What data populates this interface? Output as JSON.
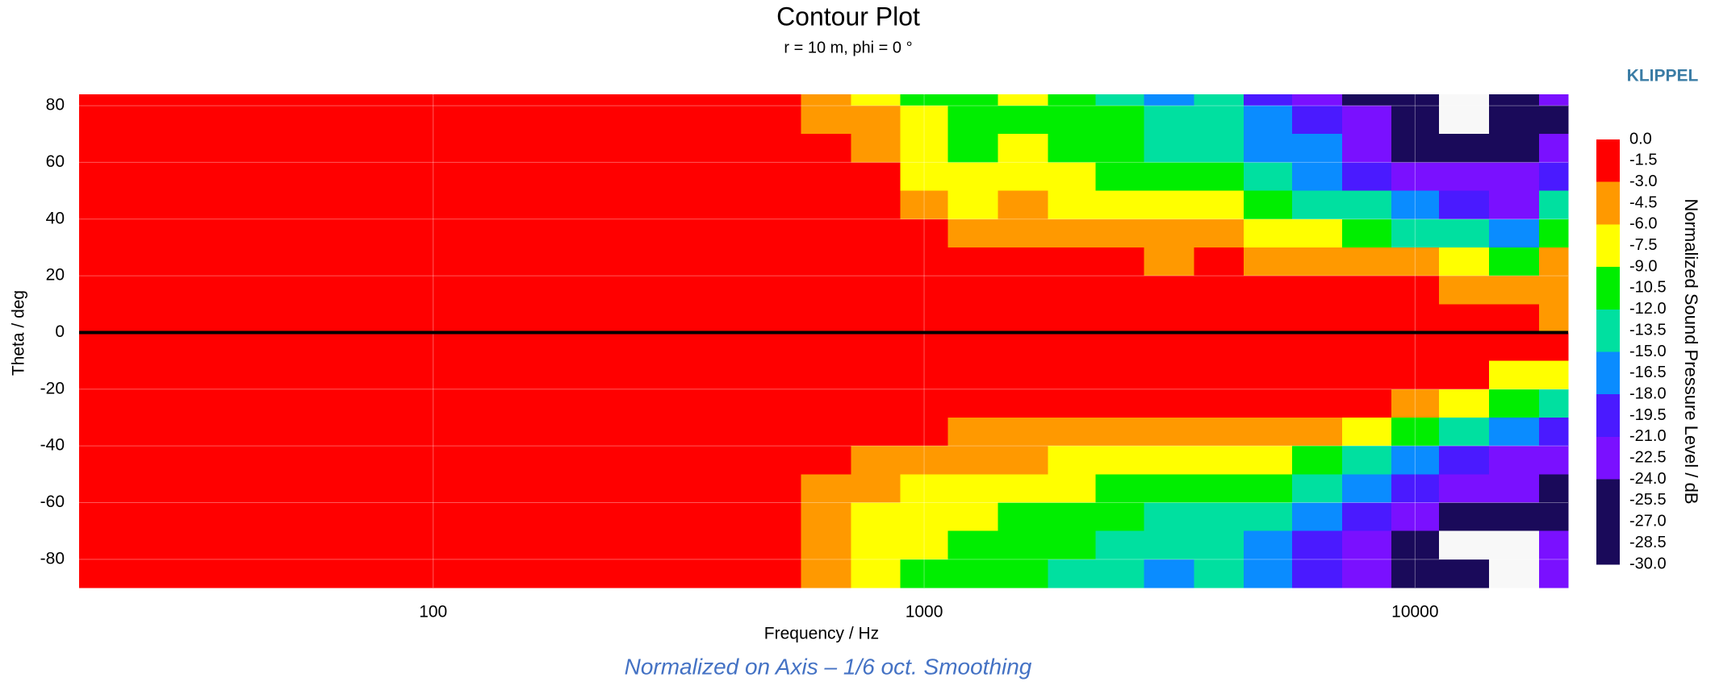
{
  "chart_data": {
    "type": "contour",
    "title": "Contour Plot",
    "subtitle": "r = 10 m, phi = 0 °",
    "brand": "KLIPPEL",
    "xlabel": "Frequency / Hz",
    "ylabel": "Theta / deg",
    "colorbar_label": "Normalized Sound Pressure Level / dB",
    "footnote": "Normalized on Axis – 1/6 oct. Smoothing",
    "xscale": "log",
    "xlim": [
      19,
      20500
    ],
    "ylim": [
      -90,
      84
    ],
    "xticks": [
      100,
      1000,
      10000
    ],
    "yticks": [
      80,
      60,
      40,
      20,
      0,
      -20,
      -40,
      -60,
      -80
    ],
    "grid": true,
    "hline": 0,
    "x": [
      20,
      500,
      630,
      800,
      1000,
      1250,
      1600,
      2000,
      2500,
      3150,
      4000,
      5000,
      6300,
      8000,
      10000,
      12500,
      16000,
      20000
    ],
    "y": [
      85,
      75,
      65,
      55,
      45,
      35,
      25,
      15,
      5,
      -5,
      -15,
      -25,
      -35,
      -45,
      -55,
      -65,
      -75,
      -85
    ],
    "z": [
      [
        0,
        -2,
        -5,
        -8,
        -10,
        -11,
        -9,
        -12,
        -14,
        -17,
        -15,
        -20,
        -22,
        -26,
        -28,
        -31,
        -26,
        -24
      ],
      [
        0,
        0,
        -4,
        -6,
        -9,
        -10,
        -10,
        -11,
        -12,
        -14,
        -14,
        -18,
        -20,
        -24,
        -26,
        -31,
        -28,
        -25
      ],
      [
        0,
        0,
        -2,
        -5,
        -8,
        -10,
        -9,
        -10,
        -11,
        -13,
        -13,
        -16,
        -18,
        -22,
        -25,
        -27,
        -26,
        -22
      ],
      [
        0,
        0,
        -1,
        -3,
        -7,
        -9,
        -8,
        -9,
        -10,
        -12,
        -11,
        -14,
        -16,
        -19,
        -22,
        -24,
        -24,
        -20
      ],
      [
        0,
        0,
        0,
        -2,
        -5,
        -7,
        -6,
        -7,
        -8,
        -9,
        -9,
        -11,
        -13,
        -15,
        -18,
        -21,
        -22,
        -15
      ],
      [
        0,
        0,
        0,
        0,
        -2,
        -4,
        -4,
        -5,
        -5,
        -6,
        -6,
        -7,
        -9,
        -10,
        -13,
        -15,
        -18,
        -10
      ],
      [
        0,
        0,
        0,
        0,
        0,
        -1,
        -2,
        -2,
        -2,
        -3.5,
        -3,
        -4,
        -4,
        -4,
        -5,
        -8,
        -10,
        -6
      ],
      [
        0,
        0,
        0,
        0,
        0,
        0,
        0,
        0,
        0,
        -1,
        -1,
        -1,
        -1,
        -2,
        -2,
        -3.5,
        -5,
        -5
      ],
      [
        0,
        0,
        0,
        0,
        0,
        0,
        0,
        0,
        0,
        0,
        0,
        0,
        0,
        0,
        0,
        -1,
        -2,
        -3.5
      ],
      [
        0,
        0,
        0,
        0,
        0,
        0,
        0,
        0,
        0,
        0,
        0,
        0,
        0,
        0,
        0,
        -1,
        -2,
        -2
      ],
      [
        0,
        0,
        0,
        0,
        0,
        0,
        0,
        0,
        0,
        0,
        0,
        0,
        0,
        -1,
        -1,
        -3,
        -7,
        -8
      ],
      [
        0,
        0,
        0,
        0,
        0,
        0,
        0,
        0,
        0,
        -1,
        -1,
        -2,
        -2,
        -2,
        -4,
        -8,
        -12,
        -14
      ],
      [
        0,
        0,
        0,
        -2,
        -3,
        -3.5,
        -3.5,
        -3.5,
        -4,
        -4,
        -4,
        -5,
        -6,
        -7,
        -10,
        -14,
        -18,
        -20
      ],
      [
        0,
        0,
        -2,
        -4,
        -5,
        -6,
        -6,
        -6.5,
        -7,
        -7,
        -8,
        -9,
        -11,
        -13,
        -17,
        -20,
        -22,
        -24
      ],
      [
        0,
        0,
        -4,
        -5,
        -7,
        -8,
        -8,
        -9,
        -10,
        -10,
        -12,
        -12,
        -15,
        -18,
        -21,
        -22,
        -24,
        -26
      ],
      [
        0,
        0,
        -5,
        -7,
        -8,
        -9,
        -10,
        -11,
        -12,
        -13,
        -14,
        -14,
        -18,
        -20,
        -23,
        -26,
        -28,
        -25
      ],
      [
        0,
        0,
        -6,
        -7,
        -9,
        -10,
        -11,
        -12,
        -13,
        -15,
        -13,
        -16,
        -20,
        -22,
        -26,
        -31,
        -31,
        -24
      ],
      [
        0,
        0,
        -6,
        -8,
        -10,
        -11,
        -11,
        -13,
        -15,
        -16,
        -14,
        -18,
        -21,
        -24,
        -28,
        -26,
        -31,
        -24
      ]
    ],
    "levels": [
      {
        "value": 0,
        "label": "0.0"
      },
      {
        "value": -1.5,
        "label": "-1.5"
      },
      {
        "value": -3,
        "label": "-3.0"
      },
      {
        "value": -4.5,
        "label": "-4.5"
      },
      {
        "value": -6,
        "label": "-6.0"
      },
      {
        "value": -7.5,
        "label": "-7.5"
      },
      {
        "value": -9,
        "label": "-9.0"
      },
      {
        "value": -10.5,
        "label": "-10.5"
      },
      {
        "value": -12,
        "label": "-12.0"
      },
      {
        "value": -13.5,
        "label": "-13.5"
      },
      {
        "value": -15,
        "label": "-15.0"
      },
      {
        "value": -16.5,
        "label": "-16.5"
      },
      {
        "value": -18,
        "label": "-18.0"
      },
      {
        "value": -19.5,
        "label": "-19.5"
      },
      {
        "value": -21,
        "label": "-21.0"
      },
      {
        "value": -22.5,
        "label": "-22.5"
      },
      {
        "value": -24,
        "label": "-24.0"
      },
      {
        "value": -25.5,
        "label": "-25.5"
      },
      {
        "value": -27,
        "label": "-27.0"
      },
      {
        "value": -28.5,
        "label": "-28.5"
      },
      {
        "value": -30,
        "label": "-30.0"
      }
    ],
    "colors": [
      "#ff0000",
      "#ff0000",
      "#ff9900",
      "#ff9900",
      "#ffff00",
      "#ffff00",
      "#00ee00",
      "#00ee00",
      "#00e0a0",
      "#00e0a0",
      "#0a8cff",
      "#0a8cff",
      "#4a1aff",
      "#4a1aff",
      "#7a10ff",
      "#7a10ff",
      "#1a0a5a",
      "#1a0a5a",
      "#1a0a5a",
      "#1a0a5a"
    ]
  }
}
